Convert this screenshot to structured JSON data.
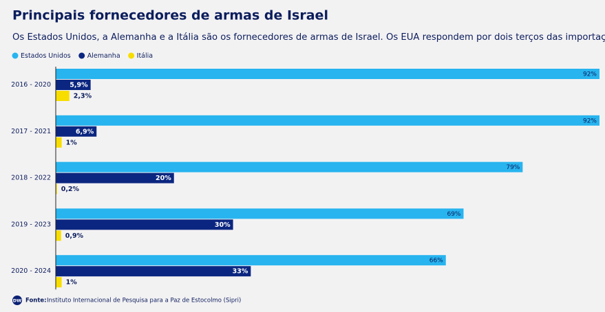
{
  "chart_data": {
    "type": "hbar",
    "title": "Principais fornecedores de armas de Israel",
    "subtitle": "Os Estados Unidos, a Alemanha e a Itália são os fornecedores de armas de Israel. Os EUA respondem por dois terços das importações de armas.",
    "categories": [
      "2016 - 2020",
      "2017 - 2021",
      "2018 - 2022",
      "2019 - 2023",
      "2020 - 2024"
    ],
    "series": [
      {
        "name": "Estados Unidos",
        "color": "#27b4ef",
        "values": [
          92,
          92,
          79,
          69,
          66
        ],
        "value_labels": [
          "92%",
          "92%",
          "79%",
          "69%",
          "66%"
        ]
      },
      {
        "name": "Alemanha",
        "color": "#0b2680",
        "values": [
          5.9,
          6.9,
          20,
          30,
          33
        ],
        "value_labels": [
          "5,9%",
          "6,9%",
          "20%",
          "30%",
          "33%"
        ]
      },
      {
        "name": "Itália",
        "color": "#f8dd00",
        "values": [
          2.3,
          1,
          0.2,
          0.9,
          1
        ],
        "value_labels": [
          "2,3%",
          "1%",
          "0,2%",
          "0,9%",
          "1%"
        ]
      }
    ],
    "logo": "DW",
    "source_label": "Fonte:",
    "source": "Instituto Internacional de Pesquisa para a Paz de Estocolmo (Sipri)"
  }
}
